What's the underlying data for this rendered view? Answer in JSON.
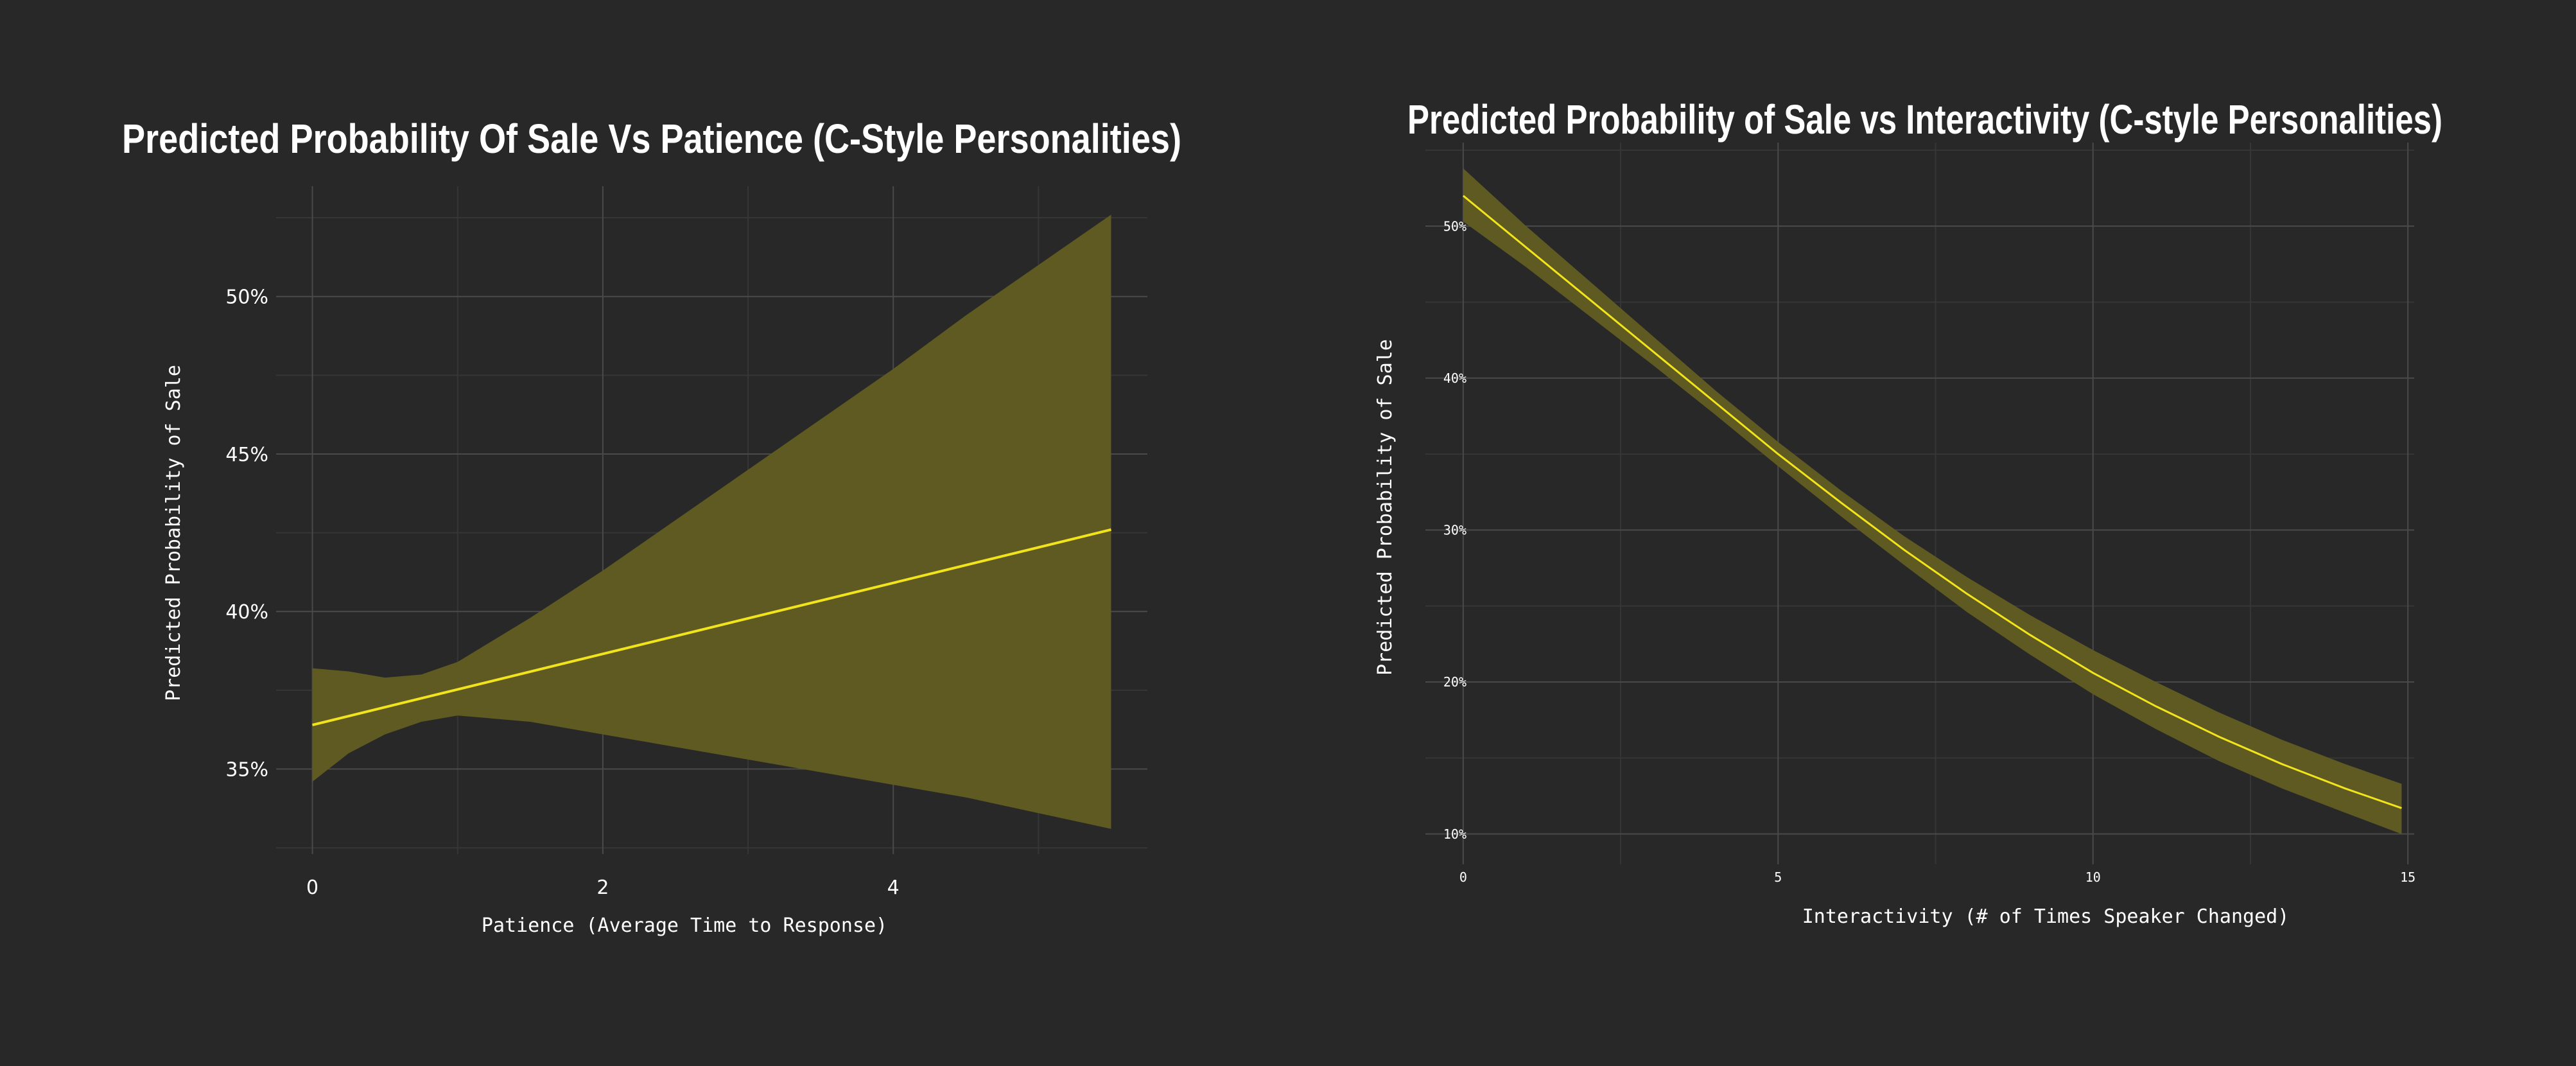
{
  "colors": {
    "background": "#282828",
    "line": "#f2e41c",
    "band": "#5e5a22",
    "grid_major": "#4a4a4a",
    "grid_minor": "#363636",
    "text": "#ffffff"
  },
  "chart_data": [
    {
      "type": "line",
      "title": "Predicted Probability Of Sale Vs Patience (C-Style Personalities)",
      "xlabel": "Patience (Average Time to Response)",
      "ylabel": "Predicted Probability of Sale",
      "xlim": [
        -0.25,
        5.75
      ],
      "ylim": [
        32.3,
        53.5
      ],
      "xticks": [
        0,
        2,
        4
      ],
      "xtick_labels": [
        "0",
        "2",
        "4"
      ],
      "yticks": [
        35,
        40,
        45,
        50
      ],
      "ytick_labels": [
        "35%",
        "40%",
        "45%",
        "50%"
      ],
      "grid": true,
      "series": [
        {
          "type": "line",
          "x": [
            0,
            5.5
          ],
          "y": [
            36.4,
            42.6
          ]
        },
        {
          "type": "band",
          "x": [
            0,
            0.25,
            0.5,
            0.75,
            1.0,
            1.5,
            2.0,
            2.5,
            3.0,
            3.5,
            4.0,
            4.5,
            5.0,
            5.5
          ],
          "lower": [
            34.6,
            35.5,
            36.1,
            36.5,
            36.7,
            36.5,
            36.1,
            35.7,
            35.3,
            34.9,
            34.5,
            34.1,
            33.6,
            33.1
          ],
          "upper": [
            38.2,
            38.1,
            37.9,
            38.0,
            38.4,
            39.8,
            41.3,
            42.9,
            44.5,
            46.1,
            47.7,
            49.4,
            51.0,
            52.6
          ]
        }
      ]
    },
    {
      "type": "line",
      "title": "Predicted Probability of Sale vs Interactivity (C-style Personalities)",
      "xlabel": "Interactivity (# of Times Speaker Changed)",
      "ylabel": "Predicted Probability of Sale",
      "xlim": [
        -0.6,
        15.1
      ],
      "ylim": [
        8.0,
        55.5
      ],
      "xticks": [
        0,
        5,
        10,
        15
      ],
      "xtick_labels": [
        "0",
        "5",
        "10",
        "15"
      ],
      "yticks": [
        10,
        20,
        30,
        40,
        50
      ],
      "ytick_labels": [
        "10%",
        "20%",
        "30%",
        "40%",
        "50%"
      ],
      "grid": true,
      "series": [
        {
          "type": "line",
          "x": [
            0,
            1,
            2,
            3,
            4,
            5,
            6,
            7,
            8,
            9,
            10,
            11,
            12,
            13,
            14,
            14.9
          ],
          "y": [
            52.0,
            48.6,
            45.2,
            41.8,
            38.4,
            35.0,
            31.8,
            28.7,
            25.8,
            23.1,
            20.6,
            18.4,
            16.4,
            14.6,
            13.0,
            11.7
          ]
        },
        {
          "type": "band",
          "x": [
            0,
            1,
            2,
            3,
            4,
            5,
            6,
            7,
            8,
            9,
            10,
            11,
            12,
            13,
            14,
            14.9
          ],
          "lower": [
            50.3,
            47.3,
            44.1,
            40.9,
            37.6,
            34.2,
            30.9,
            27.7,
            24.6,
            21.8,
            19.2,
            16.9,
            14.8,
            13.0,
            11.4,
            10.0
          ],
          "upper": [
            53.8,
            50.0,
            46.4,
            42.8,
            39.2,
            35.8,
            32.6,
            29.6,
            26.9,
            24.4,
            22.1,
            20.0,
            18.0,
            16.2,
            14.6,
            13.3
          ]
        }
      ]
    }
  ]
}
